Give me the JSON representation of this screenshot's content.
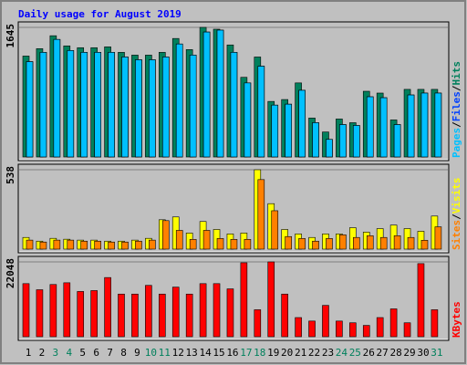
{
  "chart_data": [
    {
      "type": "bar",
      "title": "Daily usage for August 2019",
      "series": [
        {
          "name": "Hits",
          "color": "#00805c",
          "values": [
            1281,
            1375,
            1539,
            1410,
            1387,
            1387,
            1398,
            1328,
            1293,
            1293,
            1328,
            1504,
            1363,
            1645,
            1622,
            1422,
            1011,
            1269,
            705,
            729,
            940,
            494,
            317,
            482,
            435,
            834,
            811,
            470,
            858,
            858,
            858
          ]
        },
        {
          "name": "Files",
          "color": "#0040ff",
          "values": [
            1210,
            1328,
            1492,
            1351,
            1328,
            1328,
            1328,
            1269,
            1234,
            1234,
            1269,
            1434,
            1293,
            1586,
            1610,
            1328,
            940,
            1152,
            658,
            670,
            846,
            435,
            223,
            411,
            400,
            764,
            752,
            411,
            787,
            811,
            811
          ]
        },
        {
          "name": "Pages",
          "color": "#00c0ff",
          "values": [
            1210,
            1328,
            1492,
            1351,
            1328,
            1328,
            1328,
            1269,
            1234,
            1234,
            1269,
            1434,
            1293,
            1586,
            1610,
            1328,
            940,
            1152,
            658,
            670,
            846,
            435,
            223,
            411,
            400,
            764,
            752,
            411,
            787,
            811,
            811
          ]
        }
      ],
      "ylim": [
        0,
        1645
      ],
      "yticks": [
        1645
      ]
    },
    {
      "type": "bar",
      "series": [
        {
          "name": "Visits",
          "color": "#ffff00",
          "values": [
            79,
            54,
            73,
            67,
            61,
            61,
            54,
            54,
            61,
            73,
            199,
            218,
            109,
            187,
            133,
            103,
            109,
            538,
            308,
            133,
            103,
            79,
            103,
            103,
            145,
            115,
            139,
            163,
            139,
            121,
            224
          ]
        },
        {
          "name": "Sites",
          "color": "#ff8000",
          "values": [
            61,
            48,
            61,
            61,
            54,
            54,
            48,
            48,
            54,
            61,
            193,
            127,
            66,
            127,
            72,
            66,
            66,
            471,
            260,
            85,
            72,
            54,
            72,
            97,
            79,
            91,
            79,
            91,
            79,
            60,
            151
          ]
        }
      ],
      "ylim": [
        0,
        538
      ],
      "yticks": [
        538
      ]
    },
    {
      "type": "bar",
      "series": [
        {
          "name": "KBytes",
          "color": "#ff0000",
          "values": [
            15640,
            13845,
            15384,
            15896,
            13332,
            13589,
            17435,
            12563,
            12563,
            15127,
            12563,
            14614,
            12563,
            15640,
            15640,
            14101,
            21794,
            7948,
            22048,
            12563,
            5641,
            4615,
            9230,
            4615,
            4102,
            3333,
            5641,
            8205,
            4102,
            21537,
            7948
          ]
        }
      ],
      "ylim": [
        0,
        22048
      ],
      "yticks": [
        22048
      ],
      "categories": [
        "1",
        "2",
        "3",
        "4",
        "5",
        "6",
        "7",
        "8",
        "9",
        "10",
        "11",
        "12",
        "13",
        "14",
        "15",
        "16",
        "17",
        "18",
        "19",
        "20",
        "21",
        "22",
        "23",
        "24",
        "25",
        "26",
        "27",
        "28",
        "29",
        "30",
        "31"
      ],
      "category_colors": [
        "#000000",
        "#000000",
        "#00805c",
        "#00805c",
        "#000000",
        "#000000",
        "#000000",
        "#000000",
        "#000000",
        "#00805c",
        "#00805c",
        "#000000",
        "#000000",
        "#000000",
        "#000000",
        "#000000",
        "#00805c",
        "#00805c",
        "#000000",
        "#000000",
        "#000000",
        "#000000",
        "#000000",
        "#00805c",
        "#00805c",
        "#000000",
        "#000000",
        "#000000",
        "#000000",
        "#000000",
        "#00805c"
      ]
    }
  ],
  "legend_separator": "/"
}
